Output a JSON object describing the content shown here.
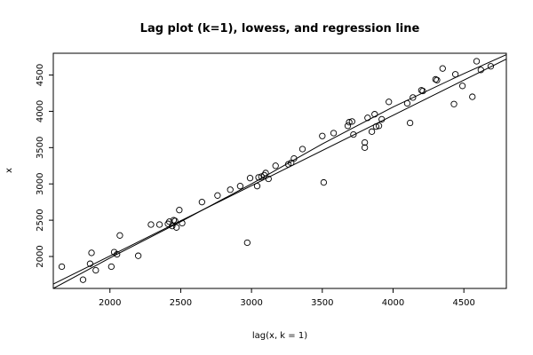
{
  "chart_data": {
    "type": "scatter",
    "title": "Lag plot (k=1), lowess, and regression line",
    "xlabel": "lag(x, k = 1)",
    "ylabel": "x",
    "xlim": [
      1600,
      4800
    ],
    "ylim": [
      1560,
      4800
    ],
    "xticks": [
      2000,
      2500,
      3000,
      3500,
      4000,
      4500
    ],
    "yticks": [
      2000,
      2500,
      3000,
      3500,
      4000,
      4500
    ],
    "grid": false,
    "points": [
      [
        1660,
        1860
      ],
      [
        1810,
        1680
      ],
      [
        1860,
        1900
      ],
      [
        1870,
        2050
      ],
      [
        1900,
        1810
      ],
      [
        2010,
        1860
      ],
      [
        2030,
        2060
      ],
      [
        2050,
        2030
      ],
      [
        2070,
        2290
      ],
      [
        2200,
        2010
      ],
      [
        2290,
        2440
      ],
      [
        2350,
        2440
      ],
      [
        2410,
        2450
      ],
      [
        2420,
        2480
      ],
      [
        2440,
        2420
      ],
      [
        2450,
        2500
      ],
      [
        2460,
        2490
      ],
      [
        2470,
        2400
      ],
      [
        2490,
        2640
      ],
      [
        2510,
        2460
      ],
      [
        2650,
        2750
      ],
      [
        2760,
        2840
      ],
      [
        2850,
        2920
      ],
      [
        2920,
        2970
      ],
      [
        2970,
        2190
      ],
      [
        2990,
        3080
      ],
      [
        3040,
        2970
      ],
      [
        3050,
        3090
      ],
      [
        3070,
        3100
      ],
      [
        3090,
        3120
      ],
      [
        3100,
        3150
      ],
      [
        3120,
        3070
      ],
      [
        3170,
        3250
      ],
      [
        3260,
        3270
      ],
      [
        3280,
        3290
      ],
      [
        3300,
        3350
      ],
      [
        3360,
        3480
      ],
      [
        3500,
        3660
      ],
      [
        3510,
        3020
      ],
      [
        3580,
        3700
      ],
      [
        3680,
        3800
      ],
      [
        3690,
        3850
      ],
      [
        3710,
        3860
      ],
      [
        3720,
        3680
      ],
      [
        3800,
        3500
      ],
      [
        3800,
        3570
      ],
      [
        3820,
        3910
      ],
      [
        3850,
        3720
      ],
      [
        3870,
        3960
      ],
      [
        3880,
        3790
      ],
      [
        3900,
        3800
      ],
      [
        3920,
        3890
      ],
      [
        3970,
        4130
      ],
      [
        4100,
        4110
      ],
      [
        4120,
        3840
      ],
      [
        4140,
        4190
      ],
      [
        4200,
        4290
      ],
      [
        4210,
        4280
      ],
      [
        4300,
        4440
      ],
      [
        4310,
        4430
      ],
      [
        4350,
        4590
      ],
      [
        4430,
        4100
      ],
      [
        4440,
        4510
      ],
      [
        4490,
        4350
      ],
      [
        4560,
        4200
      ],
      [
        4590,
        4690
      ],
      [
        4620,
        4570
      ],
      [
        4690,
        4620
      ]
    ],
    "regression_line": {
      "x": [
        1600,
        4800
      ],
      "y": [
        1620,
        4720
      ]
    },
    "lowess_line": {
      "x": [
        1600,
        2000,
        2500,
        3000,
        3500,
        4000,
        4500,
        4800
      ],
      "y": [
        1560,
        1980,
        2480,
        3000,
        3550,
        4060,
        4520,
        4780
      ]
    }
  }
}
